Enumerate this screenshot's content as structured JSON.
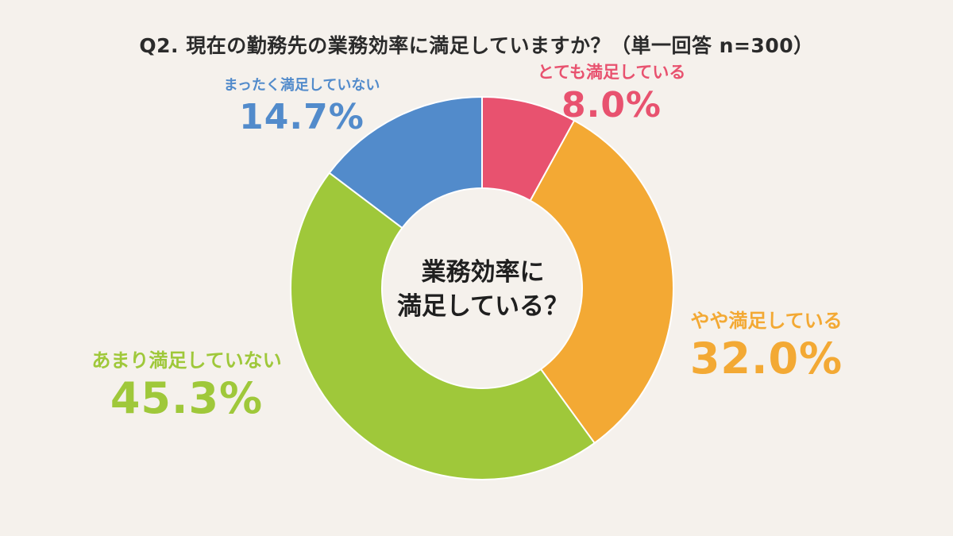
{
  "chart_data": {
    "type": "pie",
    "variant": "donut",
    "title": "Q2. 現在の勤務先の業務効率に満足していますか？（単一回答 n=300）",
    "center_text": [
      "業務効率に",
      "満足している？"
    ],
    "slices": [
      {
        "label": "とても満足している",
        "value": 8.0,
        "display": "8.0%",
        "color": "#e8526f"
      },
      {
        "label": "やや満足している",
        "value": 32.0,
        "display": "32.0%",
        "color": "#f3a934"
      },
      {
        "label": "あまり満足していない",
        "value": 45.3,
        "display": "45.3%",
        "color": "#9fc83a"
      },
      {
        "label": "まったく満足していない",
        "value": 14.7,
        "display": "14.7%",
        "color": "#528bcb"
      }
    ]
  }
}
